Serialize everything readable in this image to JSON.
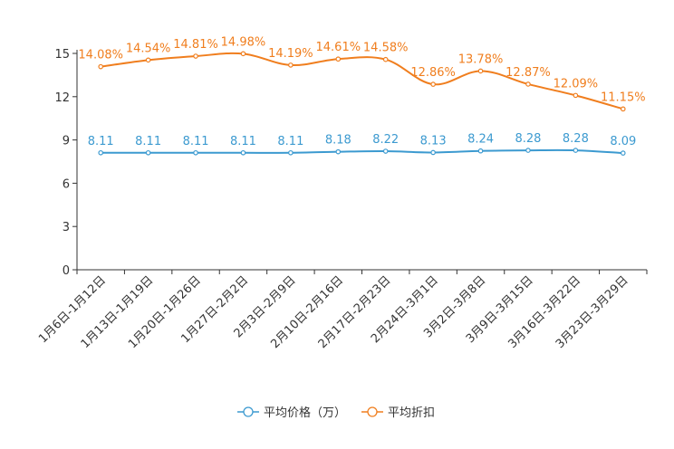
{
  "chart_data": {
    "type": "line",
    "categories": [
      "1月6日-1月12日",
      "1月13日-1月19日",
      "1月20日-1月26日",
      "1月27日-2月2日",
      "2月3日-2月9日",
      "2月10日-2月16日",
      "2月17日-2月23日",
      "2月24日-3月1日",
      "3月2日-3月8日",
      "3月9日-3月15日",
      "3月16日-3月22日",
      "3月23日-3月29日"
    ],
    "ylim": [
      0,
      15
    ],
    "yticks": [
      0,
      3,
      6,
      9,
      12,
      15
    ],
    "series": [
      {
        "name": "平均价格（万）",
        "color": "#3c9ad0",
        "values": [
          8.11,
          8.11,
          8.11,
          8.11,
          8.11,
          8.18,
          8.22,
          8.13,
          8.24,
          8.28,
          8.28,
          8.09
        ],
        "labels": [
          "8.11",
          "8.11",
          "8.11",
          "8.11",
          "8.11",
          "8.18",
          "8.22",
          "8.13",
          "8.24",
          "8.28",
          "8.28",
          "8.09"
        ]
      },
      {
        "name": "平均折扣",
        "color": "#f07e1e",
        "values": [
          14.08,
          14.54,
          14.81,
          14.98,
          14.19,
          14.61,
          14.58,
          12.86,
          13.78,
          12.87,
          12.09,
          11.15
        ],
        "labels": [
          "14.08%",
          "14.54%",
          "14.81%",
          "14.98%",
          "14.19%",
          "14.61%",
          "14.58%",
          "12.86%",
          "13.78%",
          "12.87%",
          "12.09%",
          "11.15%"
        ]
      }
    ]
  }
}
